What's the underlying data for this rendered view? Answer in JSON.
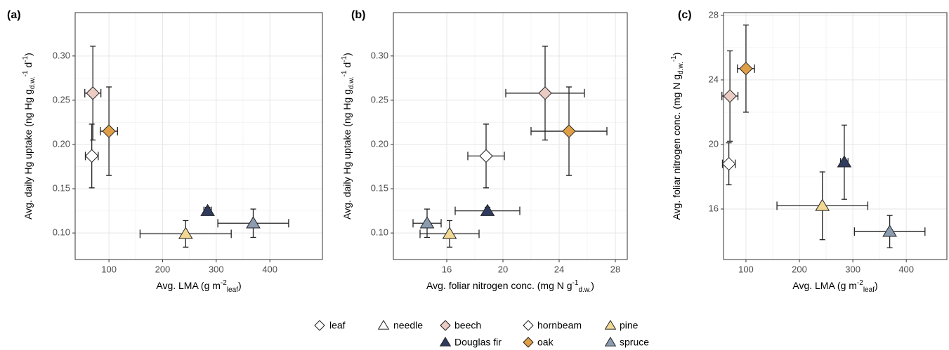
{
  "chart_data": [
    {
      "type": "scatter",
      "panel": "(a)",
      "xlabel": [
        {
          "text": "Avg. LMA (g m"
        },
        {
          "text": "-2",
          "style": "sup"
        },
        {
          "text": "leaf",
          "style": "sub"
        },
        {
          "text": ")"
        }
      ],
      "ylabel": [
        {
          "text": "Avg. daily Hg uptake  (ng Hg g"
        },
        {
          "text": "d.w.",
          "style": "sub"
        },
        {
          "text": "-1",
          "style": "sup"
        },
        {
          "text": " d"
        },
        {
          "text": "-1",
          "style": "sup"
        },
        {
          "text": ")"
        }
      ],
      "x": [
        70,
        284,
        68,
        100,
        243,
        369
      ],
      "xerr": [
        15,
        7,
        12,
        16,
        85,
        66
      ],
      "y": [
        0.258,
        0.125,
        0.187,
        0.215,
        0.099,
        0.111
      ],
      "yerr": [
        0.053,
        0.004,
        0.036,
        0.05,
        0.015,
        0.016
      ],
      "xlim": [
        37,
        498
      ],
      "xticks": [
        100,
        200,
        300,
        400
      ],
      "ylim": [
        0.07,
        0.349
      ],
      "yticks": [
        {
          "value": 0.1,
          "label": "0.10"
        },
        0.15,
        {
          "value": 0.2,
          "label": "0.20"
        },
        0.25,
        {
          "value": 0.3,
          "label": "0.30"
        }
      ],
      "grid": true
    },
    {
      "type": "scatter",
      "panel": "(b)",
      "xlabel": [
        {
          "text": "Avg. foliar nitrogen conc. (mg N g"
        },
        {
          "text": "-1",
          "style": "sup"
        },
        {
          "text": "d.w.",
          "style": "sub"
        },
        {
          "text": ")"
        }
      ],
      "ylabel": [
        {
          "text": "Avg. daily Hg uptake  (ng Hg g"
        },
        {
          "text": "d.w.",
          "style": "sub"
        },
        {
          "text": "-1",
          "style": "sup"
        },
        {
          "text": " d"
        },
        {
          "text": "-1",
          "style": "sup"
        },
        {
          "text": ")"
        }
      ],
      "x": [
        23.0,
        18.9,
        18.8,
        24.7,
        16.2,
        14.6
      ],
      "xerr": [
        2.8,
        2.3,
        1.3,
        2.7,
        2.1,
        1.0
      ],
      "y": [
        0.258,
        0.125,
        0.187,
        0.215,
        0.099,
        0.111
      ],
      "yerr": [
        0.053,
        0.004,
        0.036,
        0.05,
        0.015,
        0.016
      ],
      "xlim": [
        12.2,
        28.85
      ],
      "xticks": [
        16,
        20,
        24,
        28
      ],
      "ylim": [
        0.07,
        0.349
      ],
      "yticks": [
        {
          "value": 0.1,
          "label": "0.10"
        },
        0.15,
        {
          "value": 0.2,
          "label": "0.20"
        },
        0.25,
        {
          "value": 0.3,
          "label": "0.30"
        }
      ],
      "grid": true
    },
    {
      "type": "scatter",
      "panel": "(c)",
      "xlabel": [
        {
          "text": "Avg. LMA (g m"
        },
        {
          "text": "-2",
          "style": "sup"
        },
        {
          "text": "leaf",
          "style": "sub"
        },
        {
          "text": ")"
        }
      ],
      "ylabel": [
        {
          "text": "Avg. foliar nitrogen conc.  (mg N g"
        },
        {
          "text": "d.w.",
          "style": "sub"
        },
        {
          "text": "-1",
          "style": "sup"
        },
        {
          "text": ")"
        }
      ],
      "x": [
        70,
        284,
        68,
        100,
        243,
        369
      ],
      "xerr": [
        15,
        7,
        12,
        16,
        85,
        66
      ],
      "y": [
        23.0,
        18.9,
        18.8,
        24.7,
        16.2,
        14.6
      ],
      "yerr": [
        2.8,
        2.3,
        1.3,
        2.7,
        2.1,
        1.0
      ],
      "xlim": [
        58,
        476
      ],
      "xticks": [
        100,
        200,
        300,
        400
      ],
      "ylim": [
        12.87,
        28.17
      ],
      "yticks": [
        16,
        20,
        24,
        28
      ],
      "grid": true
    }
  ],
  "legend": {
    "types": [
      {
        "name": "leaf",
        "marker": "diamond",
        "color": "#ffffff"
      },
      {
        "name": "needle",
        "marker": "triangle",
        "color": "#ffffff"
      }
    ],
    "species": [
      {
        "name": "beech",
        "marker": "diamond",
        "color": "#ebcbc3"
      },
      {
        "name": "Douglas fir",
        "marker": "triangle",
        "color": "#2f3a5f"
      },
      {
        "name": "hornbeam",
        "marker": "diamond",
        "color": "#ffffff"
      },
      {
        "name": "oak",
        "marker": "diamond",
        "color": "#e09f47"
      },
      {
        "name": "pine",
        "marker": "triangle",
        "color": "#f2d993"
      },
      {
        "name": "spruce",
        "marker": "triangle",
        "color": "#8b9bb0"
      }
    ]
  }
}
